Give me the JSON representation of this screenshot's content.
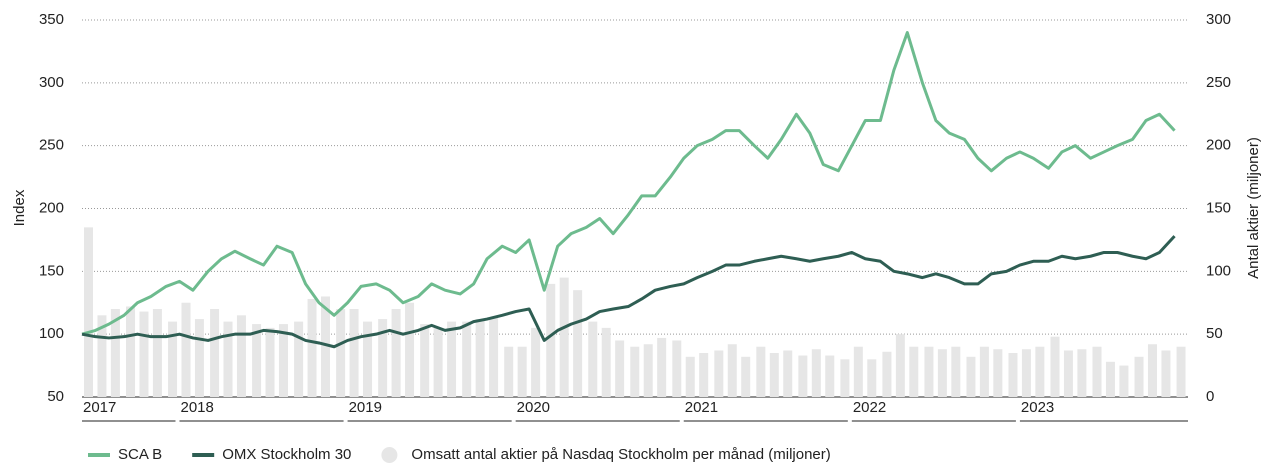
{
  "chart_data": {
    "type": "line",
    "ylabel": "Index",
    "y2label": "Antal aktier (miljoner)",
    "x": [
      2017.42,
      2017.5,
      2017.58,
      2017.67,
      2017.75,
      2017.83,
      2017.92,
      2018,
      2018.08,
      2018.17,
      2018.25,
      2018.33,
      2018.42,
      2018.5,
      2018.58,
      2018.67,
      2018.75,
      2018.83,
      2018.92,
      2019,
      2019.08,
      2019.17,
      2019.25,
      2019.33,
      2019.42,
      2019.5,
      2019.58,
      2019.67,
      2019.75,
      2019.83,
      2019.92,
      2020,
      2020.08,
      2020.17,
      2020.25,
      2020.33,
      2020.42,
      2020.5,
      2020.58,
      2020.67,
      2020.75,
      2020.83,
      2020.92,
      2021,
      2021.08,
      2021.17,
      2021.25,
      2021.33,
      2021.42,
      2021.5,
      2021.58,
      2021.67,
      2021.75,
      2021.83,
      2021.92,
      2022,
      2022.08,
      2022.17,
      2022.25,
      2022.33,
      2022.42,
      2022.5,
      2022.58,
      2022.67,
      2022.75,
      2022.83,
      2022.92,
      2023,
      2023.08,
      2023.17,
      2023.25,
      2023.33,
      2023.42,
      2023.5,
      2023.58,
      2023.67,
      2023.75,
      2023.83,
      2023.92
    ],
    "series": [
      {
        "name": "Omsatt antal aktier på Nasdaq Stockholm per månad (miljoner)",
        "type": "bar",
        "axis": "y2",
        "color": "#e6e6e6",
        "values": [
          135,
          65,
          70,
          72,
          68,
          70,
          60,
          75,
          62,
          70,
          60,
          65,
          58,
          55,
          58,
          60,
          78,
          80,
          70,
          70,
          60,
          62,
          70,
          75,
          58,
          55,
          60,
          60,
          62,
          63,
          40,
          40,
          55,
          90,
          95,
          85,
          60,
          55,
          45,
          40,
          42,
          47,
          45,
          32,
          35,
          37,
          42,
          32,
          40,
          35,
          37,
          33,
          38,
          33,
          30,
          40,
          30,
          36,
          50,
          40,
          40,
          38,
          40,
          32,
          40,
          38,
          35,
          38,
          40,
          48,
          37,
          38,
          40,
          28,
          25,
          32,
          42,
          37,
          40
        ]
      },
      {
        "name": "SCA B",
        "type": "line",
        "color": "#6dbb8e",
        "values": [
          100,
          103,
          108,
          115,
          125,
          130,
          138,
          142,
          135,
          150,
          160,
          166,
          160,
          155,
          170,
          165,
          140,
          125,
          115,
          125,
          138,
          140,
          135,
          125,
          130,
          140,
          135,
          132,
          140,
          160,
          170,
          165,
          175,
          135,
          170,
          180,
          185,
          192,
          180,
          195,
          210,
          210,
          225,
          240,
          250,
          255,
          262,
          262,
          250,
          240,
          255,
          275,
          260,
          235,
          230,
          250,
          270,
          270,
          310,
          340,
          300,
          270,
          260,
          255,
          240,
          230,
          240,
          245,
          240,
          232,
          245,
          250,
          240,
          245,
          250,
          255,
          270,
          275,
          262
        ]
      },
      {
        "name": "OMX Stockholm 30",
        "type": "line",
        "color": "#2e5e53",
        "values": [
          100,
          98,
          97,
          98,
          100,
          98,
          98,
          100,
          97,
          95,
          98,
          100,
          100,
          103,
          102,
          100,
          95,
          93,
          90,
          95,
          98,
          100,
          103,
          100,
          103,
          107,
          103,
          105,
          110,
          112,
          115,
          118,
          120,
          95,
          103,
          108,
          112,
          118,
          120,
          122,
          128,
          135,
          138,
          140,
          145,
          150,
          155,
          155,
          158,
          160,
          162,
          160,
          158,
          160,
          162,
          165,
          160,
          158,
          150,
          148,
          145,
          148,
          145,
          140,
          140,
          148,
          150,
          155,
          158,
          158,
          162,
          160,
          162,
          165,
          165,
          162,
          160,
          165,
          178
        ]
      }
    ],
    "xlim": [
      2017.42,
      2024
    ],
    "xticks": [
      2017,
      2018,
      2019,
      2020,
      2021,
      2022,
      2023
    ],
    "ylim": [
      50,
      350
    ],
    "yticks": [
      50,
      100,
      150,
      200,
      250,
      300,
      350
    ],
    "y2lim": [
      0,
      300
    ],
    "y2ticks": [
      0,
      50,
      100,
      150,
      200,
      250,
      300
    ],
    "grid": true,
    "legend": "bottom"
  }
}
